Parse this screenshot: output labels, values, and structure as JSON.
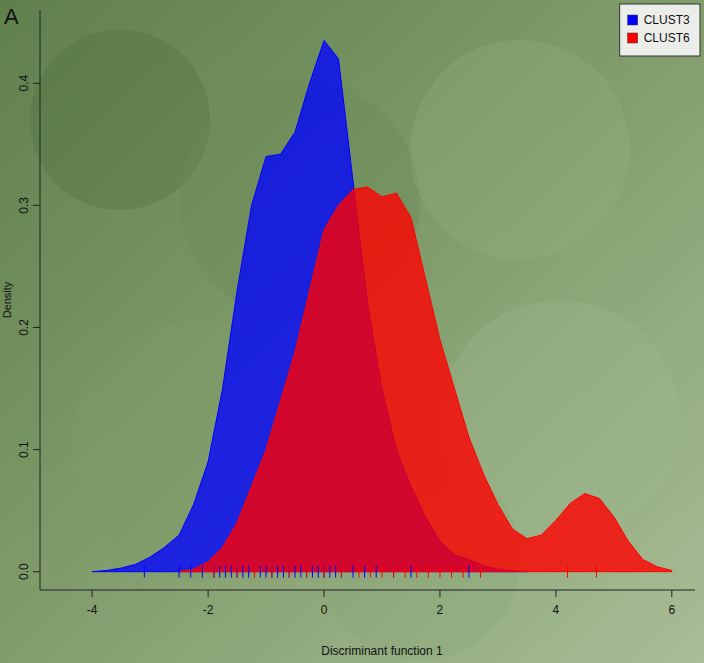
{
  "chart_data": {
    "type": "density",
    "panel_label": "A",
    "x_label": "Discriminant function 1",
    "y_label": "Density",
    "x": [
      -4,
      -3.75,
      -3.5,
      -3.25,
      -3,
      -2.75,
      -2.5,
      -2.25,
      -2,
      -1.75,
      -1.5,
      -1.25,
      -1,
      -0.75,
      -0.5,
      -0.25,
      0,
      0.25,
      0.5,
      0.75,
      1,
      1.25,
      1.5,
      1.75,
      2,
      2.25,
      2.5,
      2.75,
      3,
      3.25,
      3.5,
      3.75,
      4,
      4.25,
      4.5,
      4.75,
      5,
      5.25,
      5.5,
      5.75,
      6
    ],
    "series": [
      {
        "name": "CLUST3",
        "color": "#0000ff",
        "values": [
          0,
          0.001,
          0.003,
          0.006,
          0.012,
          0.02,
          0.03,
          0.055,
          0.09,
          0.15,
          0.23,
          0.3,
          0.34,
          0.342,
          0.36,
          0.4,
          0.435,
          0.42,
          0.32,
          0.22,
          0.15,
          0.1,
          0.07,
          0.045,
          0.025,
          0.014,
          0.01,
          0.005,
          0.002,
          0.001,
          0,
          null,
          null,
          null,
          null,
          null,
          null,
          null,
          null,
          null,
          null
        ],
        "rug": [
          -3.1,
          -2.5,
          -2.3,
          -2.1,
          -1.9,
          -1.8,
          -1.7,
          -1.6,
          -1.5,
          -1.4,
          -1.3,
          -1.2,
          -1.1,
          -1.0,
          -0.9,
          -0.8,
          -0.7,
          -0.6,
          -0.5,
          -0.4,
          -0.3,
          -0.2,
          -0.1,
          0.0,
          0.1,
          0.2,
          0.3,
          0.5,
          0.7,
          0.9,
          1.2,
          1.5,
          2.5
        ]
      },
      {
        "name": "CLUST6",
        "color": "#ff0000",
        "values": [
          null,
          null,
          null,
          null,
          null,
          null,
          0,
          0.002,
          0.008,
          0.02,
          0.04,
          0.07,
          0.1,
          0.14,
          0.18,
          0.23,
          0.28,
          0.3,
          0.313,
          0.315,
          0.307,
          0.31,
          0.29,
          0.24,
          0.19,
          0.15,
          0.11,
          0.08,
          0.055,
          0.035,
          0.027,
          0.03,
          0.042,
          0.056,
          0.064,
          0.06,
          0.045,
          0.025,
          0.01,
          0.004,
          0.001
        ],
        "rug": [
          -1.9,
          -1.5,
          -1.2,
          -0.9,
          -0.6,
          -0.3,
          0.0,
          0.3,
          0.6,
          0.8,
          1.0,
          1.2,
          1.4,
          1.6,
          1.8,
          2.0,
          2.2,
          2.4,
          2.7,
          4.2,
          4.7
        ]
      }
    ],
    "xlim": [
      -4.9,
      6.4
    ],
    "xticks": [
      -4,
      -2,
      0,
      2,
      4,
      6
    ],
    "ylim": [
      -0.015,
      0.46
    ],
    "yticks": [
      {
        "value": 0,
        "label": "0.0"
      },
      0.1,
      0.2,
      0.3,
      0.4
    ],
    "legend": "topright",
    "grid": false
  }
}
